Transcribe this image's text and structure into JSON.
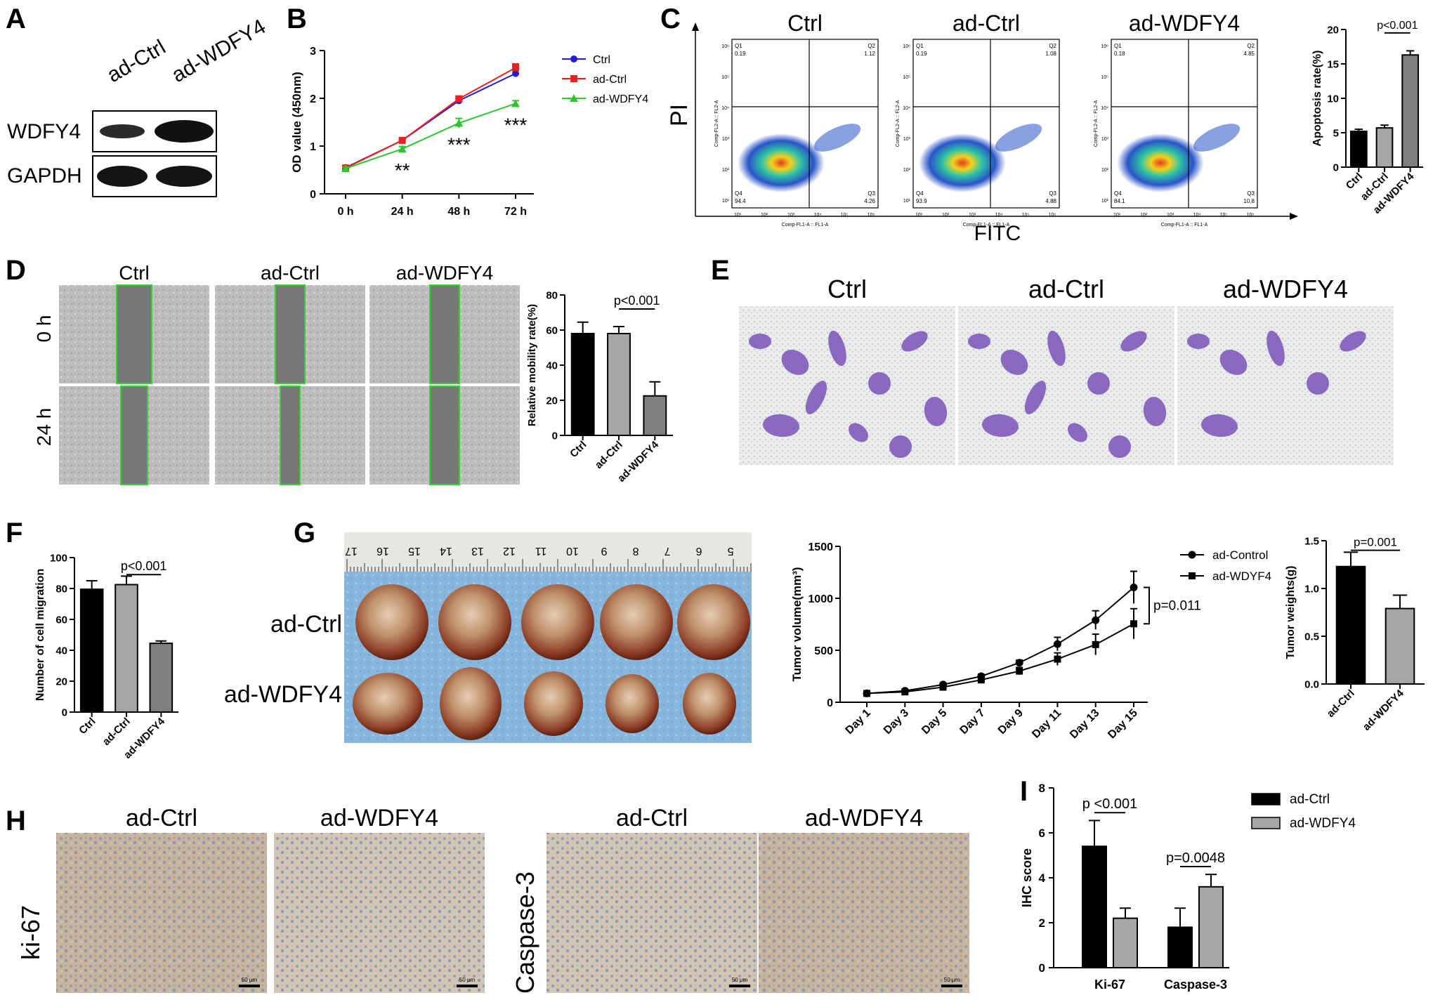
{
  "panels": {
    "A": {
      "letter": "A",
      "columns": [
        "ad-Ctrl",
        "ad-WDFY4"
      ],
      "rows": [
        "WDFY4",
        "GAPDH"
      ]
    },
    "C": {
      "letter": "C",
      "group_titles": [
        "Ctrl",
        "ad-Ctrl",
        "ad-WDFY4"
      ],
      "y_axis": "PI",
      "x_axis": "FITC",
      "plot_ylabel": "Comp-FL2-A :: FL2-A",
      "plot_xlabel": "Comp-FL1-A :: FL1-A",
      "decades": [
        "10¹",
        "10²",
        "10³",
        "10⁴",
        "10⁵",
        "10⁶"
      ],
      "quadrants": [
        {
          "Q1": "Q1",
          "Q1v": "0.19",
          "Q2": "Q2",
          "Q2v": "1.12",
          "Q3": "Q3",
          "Q3v": "4.26",
          "Q4": "Q4",
          "Q4v": "94.4"
        },
        {
          "Q1": "Q1",
          "Q1v": "0.19",
          "Q2": "Q2",
          "Q2v": "1.08",
          "Q3": "Q3",
          "Q3v": "4.88",
          "Q4": "Q4",
          "Q4v": "93.9"
        },
        {
          "Q1": "Q1",
          "Q1v": "0.18",
          "Q2": "Q2",
          "Q2v": "4.85",
          "Q3": "Q3",
          "Q3v": "10.8",
          "Q4": "Q4",
          "Q4v": "84.1"
        }
      ]
    },
    "D": {
      "letter": "D",
      "titles": [
        "Ctrl",
        "ad-Ctrl",
        "ad-WDFY4"
      ],
      "rows": [
        "0 h",
        "24 h"
      ]
    },
    "E": {
      "letter": "E",
      "titles": [
        "Ctrl",
        "ad-Ctrl",
        "ad-WDFY4"
      ]
    },
    "G": {
      "letter": "G",
      "row_labels": [
        "ad-Ctrl",
        "ad-WDFY4"
      ],
      "ruler_numbers": [
        "17",
        "16",
        "15",
        "14",
        "13",
        "12",
        "11",
        "10",
        "9",
        "8",
        "7",
        "6",
        "5"
      ]
    },
    "H": {
      "letter": "H",
      "titles": [
        "ad-Ctrl",
        "ad-WDFY4",
        "ad-Ctrl",
        "ad-WDFY4"
      ],
      "row_labels": [
        "ki-67",
        "Caspase-3"
      ],
      "scalebar": "50 μm"
    }
  },
  "colors": {
    "ctrl_bar": "#000000",
    "adctrl_bar": "#a6a6a6",
    "adwdfy4_bar": "#7f7f7f",
    "line_ctrl": "#1f1fd6",
    "line_adctrl": "#e8201f",
    "line_adwdfy4": "#2fc52f",
    "purple_stain": "#7a52b8",
    "blue_towel": "#7fb2db"
  },
  "chart_data": [
    {
      "id": "B",
      "letter": "B",
      "type": "line",
      "x": [
        "0 h",
        "24 h",
        "48 h",
        "72 h"
      ],
      "ylabel": "OD value (450nm)",
      "ylim": [
        0,
        3
      ],
      "yticks": [
        "0",
        "1",
        "2",
        "3"
      ],
      "series": [
        {
          "name": "Ctrl",
          "values": [
            0.55,
            1.12,
            1.95,
            2.52
          ],
          "err": [
            0.03,
            0.03,
            0.05,
            0.07
          ]
        },
        {
          "name": "ad-Ctrl",
          "values": [
            0.54,
            1.12,
            1.99,
            2.64
          ],
          "err": [
            0.03,
            0.03,
            0.05,
            0.08
          ]
        },
        {
          "name": "ad-WDFY4",
          "values": [
            0.53,
            0.94,
            1.48,
            1.89
          ],
          "err": [
            0.03,
            0.05,
            0.1,
            0.06
          ]
        }
      ],
      "annotations": [
        "**",
        "***",
        "***"
      ]
    },
    {
      "id": "C",
      "type": "bar",
      "categories": [
        "Ctrl",
        "ad-Ctrl",
        "ad-WDFY4"
      ],
      "values": [
        5.2,
        5.7,
        16.3
      ],
      "err": [
        0.3,
        0.4,
        0.6
      ],
      "ylabel": "Apoptosis rate(%)",
      "ylim": [
        0,
        20
      ],
      "yticks": [
        "0",
        "5",
        "10",
        "15",
        "20"
      ],
      "pvalue": "p<0.001"
    },
    {
      "id": "D",
      "type": "bar",
      "categories": [
        "Ctrl",
        "ad-Ctrl",
        "ad-WDFY4"
      ],
      "values": [
        58.0,
        58.0,
        22.5
      ],
      "err": [
        6.5,
        4.0,
        8.0
      ],
      "ylabel": "Relative mobility rate(%)",
      "ylim": [
        0,
        80
      ],
      "yticks": [
        "0",
        "20",
        "40",
        "60",
        "80"
      ],
      "pvalue": "p<0.001"
    },
    {
      "id": "F",
      "letter": "F",
      "type": "bar",
      "categories": [
        "Ctrl",
        "ad-Ctrl",
        "ad-WDFY4"
      ],
      "values": [
        79.5,
        82.5,
        44.5
      ],
      "err": [
        5.5,
        5.5,
        1.5
      ],
      "ylabel": "Number of cell migration",
      "ylim": [
        0,
        100
      ],
      "yticks": [
        "0",
        "20",
        "40",
        "60",
        "80",
        "100"
      ],
      "pvalue": "p<0.001"
    },
    {
      "id": "G-volume",
      "type": "line",
      "x": [
        "Day 1",
        "Day 3",
        "Day 5",
        "Day 7",
        "Day 9",
        "Day 11",
        "Day 13",
        "Day 15"
      ],
      "ylabel": "Tumor volume(mm³)",
      "ylim": [
        0,
        1500
      ],
      "yticks": [
        "0",
        "500",
        "1000",
        "1500"
      ],
      "series": [
        {
          "name": "ad-Control",
          "values": [
            85,
            110,
            170,
            250,
            380,
            560,
            790,
            1105
          ],
          "err": [
            10,
            10,
            15,
            20,
            25,
            65,
            90,
            155
          ]
        },
        {
          "name": "ad-WDYF4",
          "values": [
            85,
            100,
            145,
            215,
            300,
            415,
            555,
            755
          ],
          "err": [
            10,
            10,
            15,
            20,
            35,
            60,
            100,
            145
          ]
        }
      ],
      "pvalue": "p=0.011"
    },
    {
      "id": "G-weight",
      "type": "bar",
      "categories": [
        "ad-Ctrl",
        "ad-WDFY4"
      ],
      "values": [
        1.23,
        0.79
      ],
      "err": [
        0.15,
        0.14
      ],
      "ylabel": "Tumor weights(g)",
      "ylim": [
        0,
        1.5
      ],
      "yticks": [
        "0.0",
        "0.5",
        "1.0",
        "1.5"
      ],
      "pvalue": "p=0.001"
    },
    {
      "id": "I",
      "letter": "I",
      "type": "bar",
      "categories": [
        "Ki-67",
        "Caspase-3"
      ],
      "series": [
        {
          "name": "ad-Ctrl",
          "values": [
            5.4,
            1.8
          ],
          "err": [
            1.15,
            0.85
          ]
        },
        {
          "name": "ad-WDFY4",
          "values": [
            2.2,
            3.6
          ],
          "err": [
            0.45,
            0.55
          ]
        }
      ],
      "ylabel": "IHC score",
      "ylim": [
        0,
        8
      ],
      "yticks": [
        "0",
        "2",
        "4",
        "6",
        "8"
      ],
      "pvalues": [
        "p <0.001",
        "p=0.0048"
      ]
    }
  ]
}
